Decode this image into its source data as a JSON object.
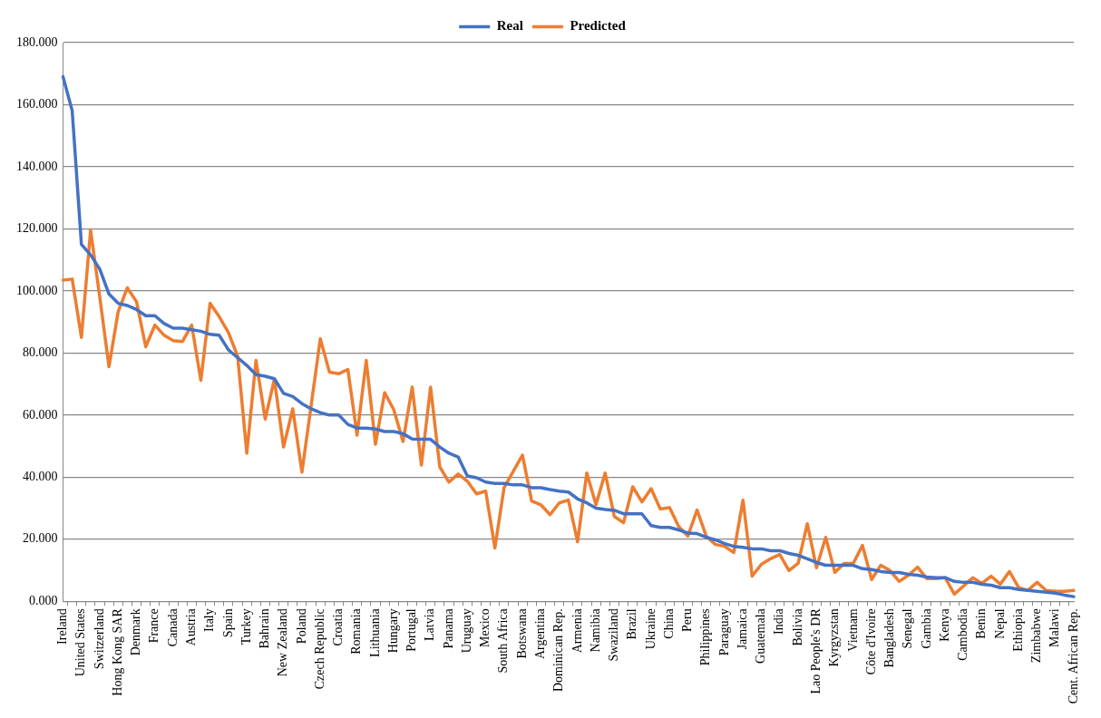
{
  "chart_data": {
    "type": "line",
    "categories": [
      "Ireland",
      null,
      "United States",
      null,
      "Switzerland",
      null,
      "Hong Kong SAR",
      null,
      "Denmark",
      null,
      "France",
      null,
      "Canada",
      null,
      "Austria",
      null,
      "Italy",
      null,
      "Spain",
      null,
      "Turkey",
      null,
      "Bahrain",
      null,
      "New Zealand",
      null,
      "Poland",
      null,
      "Czech Republic",
      null,
      "Croatia",
      null,
      "Romania",
      null,
      "Lithuania",
      null,
      "Hungary",
      null,
      "Portugal",
      null,
      "Latvia",
      null,
      "Panama",
      null,
      "Uruguay",
      null,
      "Mexico",
      null,
      "South Africa",
      null,
      "Botswana",
      null,
      "Argentina",
      null,
      "Dominican Rep.",
      null,
      "Armenia",
      null,
      "Namibia",
      null,
      "Swaziland",
      null,
      "Brazil",
      null,
      "Ukraine",
      null,
      "China",
      null,
      "Peru",
      null,
      "Philippines",
      null,
      "Paraguay",
      null,
      "Jamaica",
      null,
      "Guatemala",
      null,
      "India",
      null,
      "Bolivia",
      null,
      "Lao People's DR",
      null,
      "Kyrgyzstan",
      null,
      "Vietnam",
      null,
      "Côte d'Ivoire",
      null,
      "Bangladesh",
      null,
      "Senegal",
      null,
      "Gambia",
      null,
      "Kenya",
      null,
      "Cambodia",
      null,
      "Benin",
      null,
      "Nepal",
      null,
      "Ethiopia",
      null,
      "Zimbabwe",
      null,
      "Malawi",
      null,
      "Cent. African Rep."
    ],
    "series": [
      {
        "name": "Real",
        "color": "#4472c4",
        "values": [
          169,
          158,
          115,
          111.6,
          107,
          99,
          96,
          95.3,
          94,
          92,
          92,
          89.5,
          88,
          88,
          87.5,
          87,
          86,
          85.7,
          81,
          78.5,
          76,
          73,
          72.5,
          71.7,
          67,
          66,
          63.7,
          62,
          60.8,
          60,
          60,
          57,
          55.8,
          55.8,
          55.5,
          54.7,
          54.7,
          54,
          52.3,
          52.2,
          52.2,
          49.7,
          47.7,
          46.5,
          40.4,
          39.8,
          38.4,
          38,
          38,
          37.5,
          37.5,
          36.6,
          36.6,
          36,
          35.5,
          35.2,
          33,
          31.7,
          30,
          29.6,
          29.3,
          28.2,
          28.2,
          28.2,
          24.4,
          23.8,
          23.8,
          23,
          22,
          21.8,
          20.6,
          19.8,
          18.6,
          17.7,
          17.4,
          16.9,
          16.9,
          16.3,
          16.3,
          15.4,
          14.8,
          13.7,
          12.5,
          11.6,
          11.6,
          11.6,
          11.6,
          10.5,
          10.2,
          9.6,
          9.3,
          9.3,
          8.7,
          8.4,
          7.8,
          7.6,
          7.6,
          6.4,
          6.1,
          6.1,
          5.5,
          5.2,
          4.4,
          4.4,
          3.8,
          3.5,
          3.2,
          2.9,
          2.6,
          2,
          1.5
        ]
      },
      {
        "name": "Predicted",
        "color": "#ed7d31",
        "values": [
          103.5,
          103.8,
          85,
          119.5,
          98,
          75.6,
          93.3,
          101,
          96.5,
          82,
          89,
          85.7,
          84,
          83.7,
          89,
          71.2,
          96,
          91.7,
          86.6,
          79,
          47.7,
          77.6,
          58.7,
          71.5,
          49.7,
          62,
          41.6,
          63,
          84.6,
          73.8,
          73.3,
          74.7,
          53.5,
          77.6,
          50.6,
          67.2,
          61.7,
          51.5,
          69,
          43.9,
          69,
          43.3,
          38.4,
          41,
          38.7,
          34.6,
          35.5,
          17.2,
          36.6,
          41.9,
          47.1,
          32.3,
          31.1,
          27.9,
          31.7,
          32.6,
          19.2,
          41.3,
          31.1,
          41.3,
          27.3,
          25.3,
          36.9,
          32,
          36.3,
          29.7,
          30.2,
          24.1,
          21,
          29.4,
          21,
          18.3,
          17.7,
          15.7,
          32.6,
          8.1,
          11.9,
          13.7,
          15.1,
          9.9,
          12.2,
          25,
          10.8,
          20.6,
          9.3,
          12.2,
          12.2,
          18,
          7,
          11.6,
          9.9,
          6.4,
          8.4,
          11,
          7.3,
          7.3,
          7.6,
          2.3,
          4.9,
          7.6,
          5.8,
          8.1,
          5.5,
          9.6,
          4.4,
          3.5,
          6.1,
          3.5,
          3.2,
          3.2,
          3.5
        ]
      }
    ],
    "ylim": [
      0,
      180
    ],
    "yticks": [
      {
        "value": 0,
        "label": "0.000"
      },
      {
        "value": 20,
        "label": "20.000"
      },
      {
        "value": 40,
        "label": "40.000"
      },
      {
        "value": 60,
        "label": "60.000"
      },
      {
        "value": 80,
        "label": "80.000"
      },
      {
        "value": 100,
        "label": "100.000"
      },
      {
        "value": 120,
        "label": "120.000"
      },
      {
        "value": 140,
        "label": "140.000"
      },
      {
        "value": 160,
        "label": "160.000"
      },
      {
        "value": 180,
        "label": "180.000"
      }
    ],
    "grid": "y",
    "legend": "top",
    "marker": "none",
    "line_style": "solid"
  }
}
